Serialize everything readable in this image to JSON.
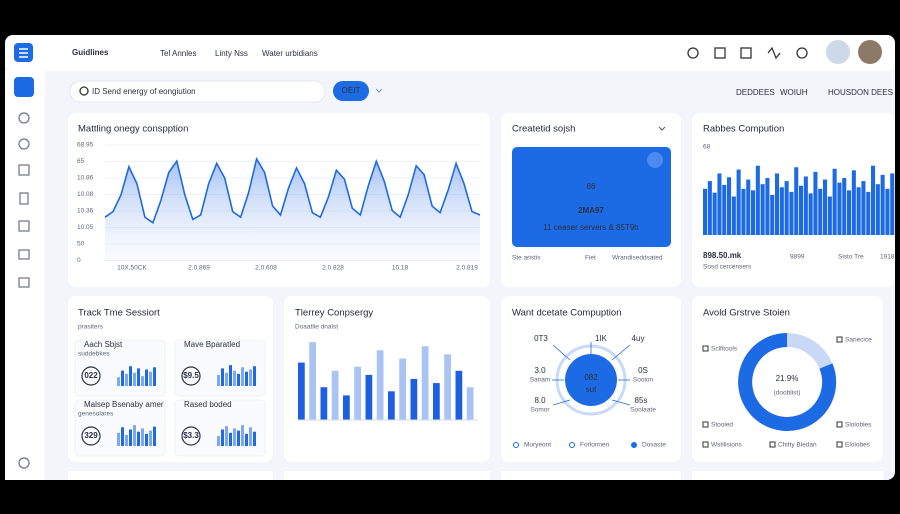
{
  "header": {
    "title": "Guidlines",
    "nav": [
      "Tel Annles",
      "Linty Nss",
      "Water urbidians"
    ]
  },
  "search": {
    "placeholder": "ID Send energy of eongiution",
    "button": "OEIT",
    "filters": [
      "DEDDEES",
      "WOIUH",
      "HOUSDON DEES"
    ]
  },
  "energy": {
    "title": "Mattling onegy conspption",
    "ylabels": [
      "68.95",
      "65",
      "10.86",
      "10.08",
      "10.36",
      "10.05",
      "50",
      "0"
    ],
    "xlabels": [
      "10X.50CK",
      "2.0.869",
      "2.0.608",
      "2.0.828",
      "10.18",
      "2.0.819"
    ],
    "ylim": [
      0,
      100
    ],
    "values": [
      40,
      45,
      60,
      85,
      70,
      40,
      35,
      55,
      80,
      90,
      60,
      38,
      42,
      70,
      88,
      75,
      45,
      40,
      62,
      92,
      80,
      50,
      42,
      66,
      84,
      70,
      44,
      40,
      58,
      82,
      74,
      48,
      42,
      68,
      90,
      72,
      46,
      40,
      60,
      86,
      78,
      50,
      44,
      64,
      88,
      70,
      45,
      42
    ]
  },
  "created": {
    "title": "Createtid sojsh",
    "big": "86",
    "code": "2MA97",
    "note": "11 ceaser servers & 85T9h",
    "footer": [
      "Ste aristis",
      "Fiet",
      "Wrandiseddsated"
    ]
  },
  "rabbes": {
    "title": "Rabbes Compution",
    "top": "68",
    "ylim": [
      0,
      100
    ],
    "values": [
      60,
      70,
      55,
      80,
      65,
      75,
      50,
      85,
      60,
      72,
      58,
      90,
      66,
      74,
      52,
      80,
      62,
      70,
      56,
      88,
      64,
      76,
      54,
      82,
      60,
      72,
      50,
      86,
      68,
      74,
      58,
      84,
      62,
      70,
      56,
      90,
      66,
      78,
      60,
      80
    ],
    "total": "898.50.mk",
    "total_note": "Sosd cercensers",
    "stats": [
      "9899",
      "Sisto Tre",
      "1918"
    ]
  },
  "track": {
    "title": "Track Tme Sessiort",
    "subtitle": "prasiters",
    "ylim": [
      0,
      100
    ],
    "mini": [
      {
        "name": "Aach Sbjst",
        "sub": "suddebkes",
        "value": "022",
        "values": [
          40,
          70,
          55,
          90,
          60,
          80,
          45,
          75,
          65,
          85
        ]
      },
      {
        "name": "Mave Bparatled",
        "sub": "",
        "value": "$9.5",
        "values": [
          50,
          80,
          60,
          95,
          70,
          55,
          85,
          65,
          75,
          90
        ]
      },
      {
        "name": "Malsep Bsenaby amer",
        "sub": "genesolares",
        "value": "329",
        "values": [
          60,
          85,
          50,
          75,
          95,
          65,
          80,
          55,
          70,
          88
        ]
      },
      {
        "name": "Rased boded",
        "sub": "",
        "value": "$3.3",
        "values": [
          45,
          75,
          90,
          60,
          80,
          70,
          95,
          55,
          85,
          65
        ]
      }
    ]
  },
  "tlerrey": {
    "title": "Tlerrey Conpsergy",
    "subtitle": "Doaatlie dnalst",
    "ylim": [
      0,
      100
    ],
    "values": [
      70,
      95,
      40,
      60,
      30,
      65,
      55,
      85,
      35,
      75,
      50,
      90,
      45,
      80,
      60,
      40
    ],
    "colors": [
      "#1d5fe0",
      "#a9c4f2"
    ]
  },
  "want": {
    "title": "Want dcetate Compuption",
    "center": "082",
    "center_sub": "sut",
    "labels": [
      "0T3",
      "1IK",
      "4uy",
      "3.0",
      "0S",
      "8.0",
      "85s"
    ],
    "sublabels": [
      "Sanam",
      "Sooion",
      "Somor",
      "Soolaate"
    ],
    "legend": [
      "Muryeont",
      "Forlonnen",
      "Dosaste"
    ]
  },
  "avold": {
    "title": "Avold Grstrve Stoien",
    "center": "21.9%",
    "center_sub": "(dooblist)",
    "labels": [
      "Sclfitools",
      "Sanecice",
      "Stooled",
      "Slolobles"
    ],
    "legend": [
      "Wstilisions",
      "Chitty Bledan",
      "Elolobes"
    ]
  }
}
